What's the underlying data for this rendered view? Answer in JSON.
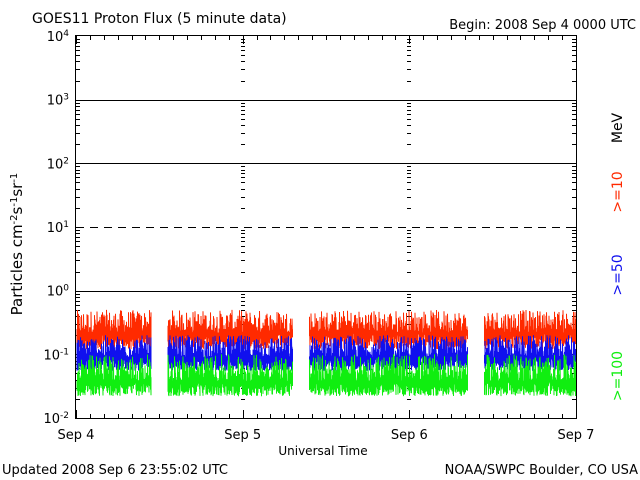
{
  "header": {
    "title": "GOES11 Proton Flux (5 minute data)",
    "begin": "Begin: 2008 Sep 4 0000 UTC"
  },
  "footer": {
    "updated": "Updated 2008 Sep  6 23:55:02 UTC",
    "credit": "NOAA/SWPC Boulder, CO USA"
  },
  "chart_data": {
    "type": "line",
    "title": "GOES11 Proton Flux (5 minute data)",
    "xlabel": "Universal Time",
    "ylabel": "Particles cm-2s-1sr-1",
    "y_scale": "log",
    "ylim": [
      0.01,
      10000
    ],
    "xlim": [
      0,
      3
    ],
    "x_ticks": [
      {
        "value": 0,
        "label": "Sep 4"
      },
      {
        "value": 1,
        "label": "Sep 5"
      },
      {
        "value": 2,
        "label": "Sep 6"
      },
      {
        "value": 3,
        "label": "Sep 7"
      }
    ],
    "y_ticks": [
      {
        "value": 0.01,
        "base": "10",
        "exp": "-2"
      },
      {
        "value": 0.1,
        "base": "10",
        "exp": "-1"
      },
      {
        "value": 1,
        "base": "10",
        "exp": "0"
      },
      {
        "value": 10,
        "base": "10",
        "exp": "1"
      },
      {
        "value": 100,
        "base": "10",
        "exp": "2"
      },
      {
        "value": 1000,
        "base": "10",
        "exp": "3"
      },
      {
        "value": 10000,
        "base": "10",
        "exp": "4"
      }
    ],
    "hlines": [
      {
        "value": 1000,
        "style": "solid"
      },
      {
        "value": 100,
        "style": "solid"
      },
      {
        "value": 10,
        "style": "dashed"
      },
      {
        "value": 1,
        "style": "solid"
      }
    ],
    "unit_label": "MeV",
    "data_gaps": [
      [
        0.45,
        0.55
      ],
      [
        1.3,
        1.4
      ],
      [
        2.35,
        2.45
      ]
    ],
    "series": [
      {
        "name": ">=10",
        "color": "#ff2a00",
        "low": 0.12,
        "high": 0.5,
        "typical": 0.22
      },
      {
        "name": ">=50",
        "color": "#1010ee",
        "low": 0.055,
        "high": 0.2,
        "typical": 0.09
      },
      {
        "name": ">=100",
        "color": "#10ee10",
        "low": 0.022,
        "high": 0.1,
        "typical": 0.038
      }
    ]
  }
}
